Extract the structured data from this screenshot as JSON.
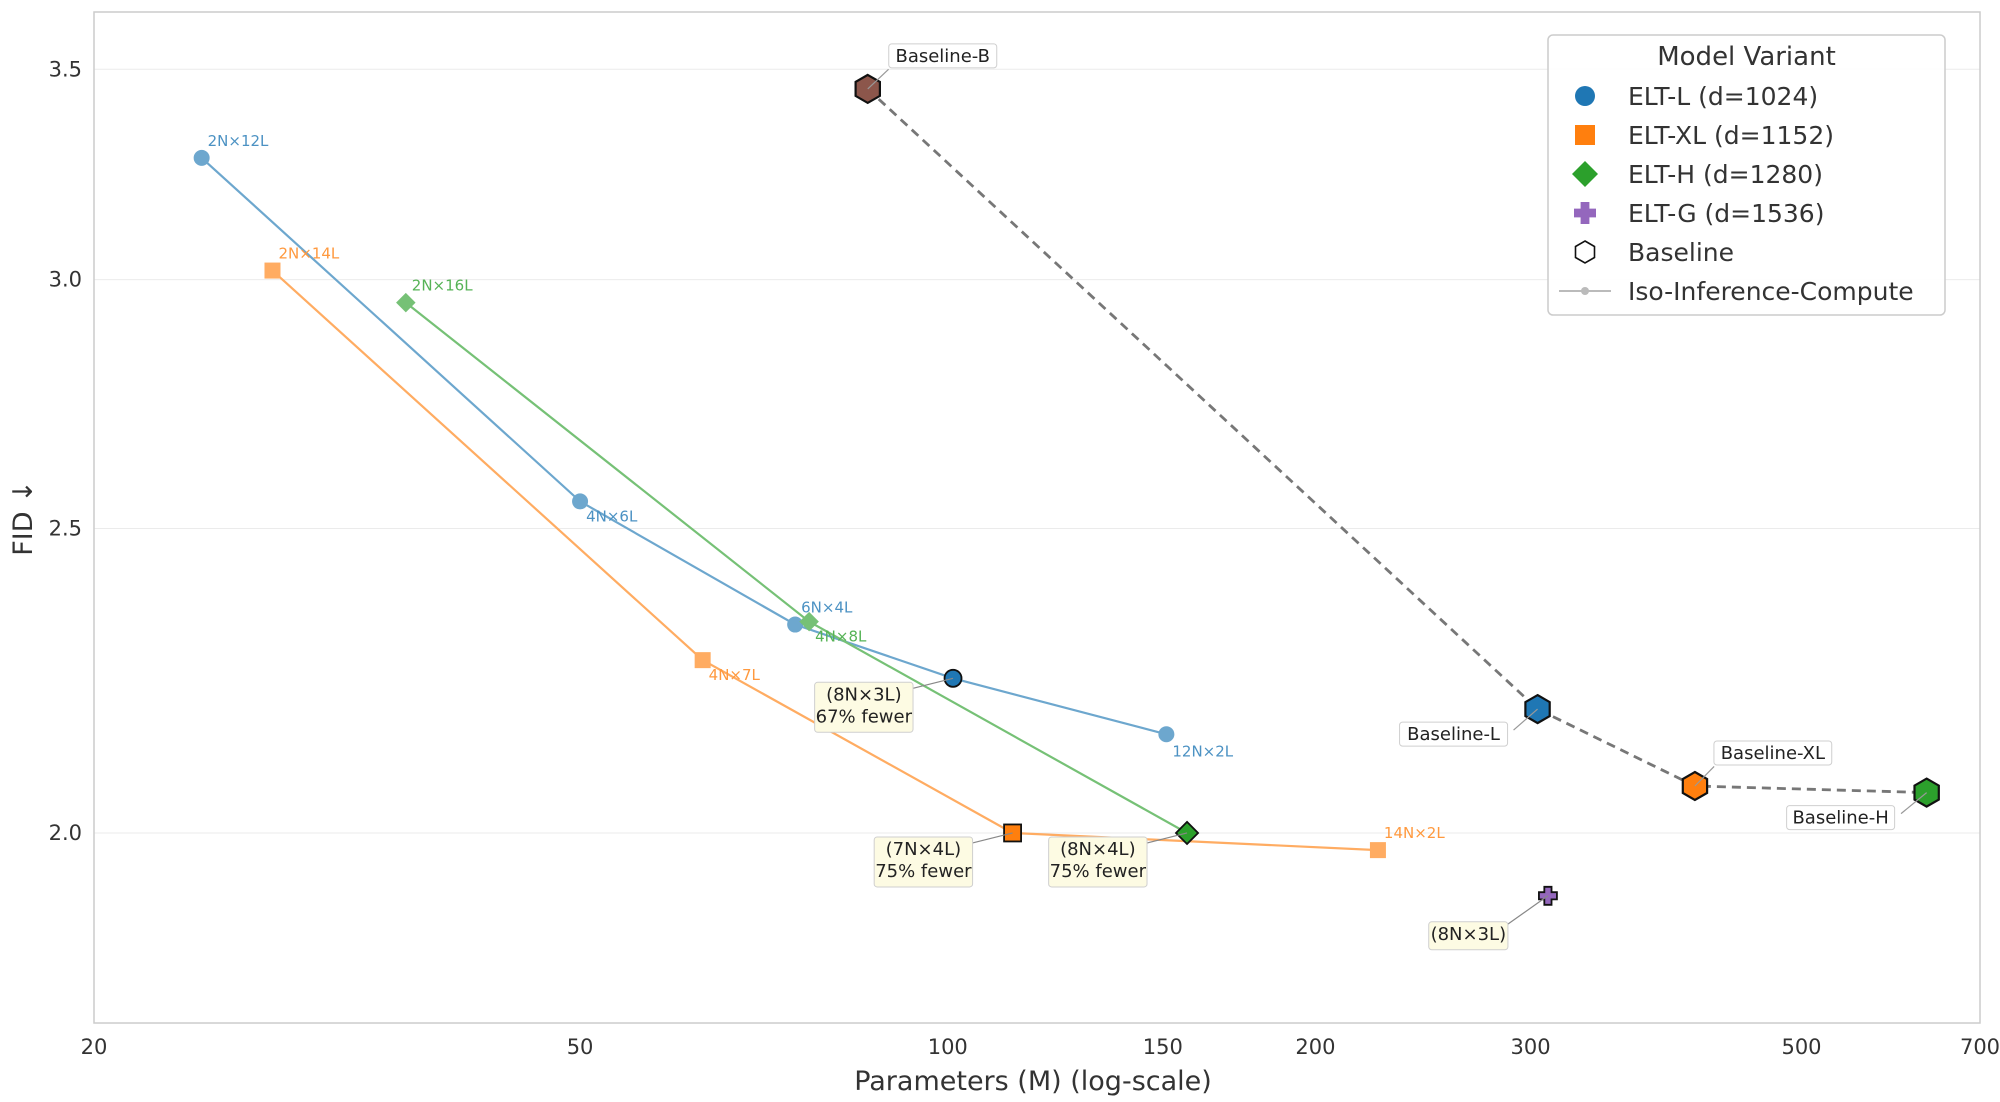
{
  "chart_data": {
    "type": "scatter",
    "xlabel": "Parameters (M) (log-scale)",
    "ylabel": "FID ↓",
    "x_scale": "log",
    "y_scale": "log",
    "xlim": [
      20,
      700
    ],
    "ylim": [
      1.74,
      3.65
    ],
    "grid": true,
    "x_ticks": [
      20,
      50,
      100,
      150,
      200,
      300,
      500,
      700
    ],
    "x_tick_labels": [
      "20",
      "50",
      "100",
      "150",
      "200",
      "300",
      "500",
      "700"
    ],
    "y_ticks": [
      2.0,
      2.5,
      3.0,
      3.5
    ],
    "y_tick_labels": [
      "2.0",
      "2.5",
      "3.0",
      "3.5"
    ],
    "legend": {
      "title": "Model Variant",
      "placement": "top-right",
      "entries": [
        {
          "label": "ELT-L (d=1024)",
          "marker": "circle",
          "color": "#1f77b4"
        },
        {
          "label": "ELT-XL (d=1152)",
          "marker": "square",
          "color": "#ff7f0e"
        },
        {
          "label": "ELT-H (d=1280)",
          "marker": "diamond",
          "color": "#2ca02c"
        },
        {
          "label": "ELT-G (d=1536)",
          "marker": "plus",
          "color": "#9467bd"
        },
        {
          "label": "Baseline",
          "marker": "hexagon",
          "color": "#ffffff"
        },
        {
          "label": "Iso-Inference-Compute",
          "marker": "line",
          "color": "#bbbbbb"
        }
      ]
    },
    "series": [
      {
        "name": "ELT-L (d=1024)",
        "marker": "circle",
        "color": "#1f77b4",
        "points": [
          {
            "x": 24.5,
            "y": 3.28,
            "label": "2N×12L"
          },
          {
            "x": 50,
            "y": 2.55,
            "label": "4N×6L"
          },
          {
            "x": 75,
            "y": 2.33,
            "label": "6N×4L"
          },
          {
            "x": 101,
            "y": 2.24,
            "highlight": true
          },
          {
            "x": 151,
            "y": 2.15,
            "label": "12N×2L"
          }
        ]
      },
      {
        "name": "ELT-XL (d=1152)",
        "marker": "square",
        "color": "#ff7f0e",
        "points": [
          {
            "x": 28,
            "y": 3.02,
            "label": "2N×14L"
          },
          {
            "x": 63,
            "y": 2.27,
            "label": "4N×7L"
          },
          {
            "x": 113,
            "y": 2.0,
            "highlight": true
          },
          {
            "x": 225,
            "y": 1.975,
            "label": "14N×2L"
          }
        ]
      },
      {
        "name": "ELT-H (d=1280)",
        "marker": "diamond",
        "color": "#2ca02c",
        "points": [
          {
            "x": 36,
            "y": 2.95,
            "label": "2N×16L"
          },
          {
            "x": 77,
            "y": 2.335,
            "label": "4N×8L"
          },
          {
            "x": 157,
            "y": 2.0,
            "highlight": true
          }
        ]
      },
      {
        "name": "ELT-G (d=1536)",
        "marker": "plus",
        "color": "#9467bd",
        "points": [
          {
            "x": 310,
            "y": 1.91,
            "highlight": true
          }
        ]
      }
    ],
    "baselines": [
      {
        "name": "Baseline-B",
        "x": 86,
        "y": 3.45,
        "color": "#8c564b"
      },
      {
        "name": "Baseline-L",
        "x": 304,
        "y": 2.19,
        "color": "#1f77b4"
      },
      {
        "name": "Baseline-XL",
        "x": 409,
        "y": 2.07,
        "color": "#ff7f0e"
      },
      {
        "name": "Baseline-H",
        "x": 633,
        "y": 2.06,
        "color": "#2ca02c"
      }
    ],
    "annotations": [
      {
        "series": 0,
        "point": 3,
        "lines": [
          "(8N×3L)",
          "67% fewer"
        ]
      },
      {
        "series": 1,
        "point": 2,
        "lines": [
          "(7N×4L)",
          "75% fewer"
        ]
      },
      {
        "series": 2,
        "point": 2,
        "lines": [
          "(8N×4L)",
          "75% fewer"
        ]
      },
      {
        "series": 3,
        "point": 0,
        "lines": [
          "(8N×3L)"
        ]
      }
    ]
  }
}
